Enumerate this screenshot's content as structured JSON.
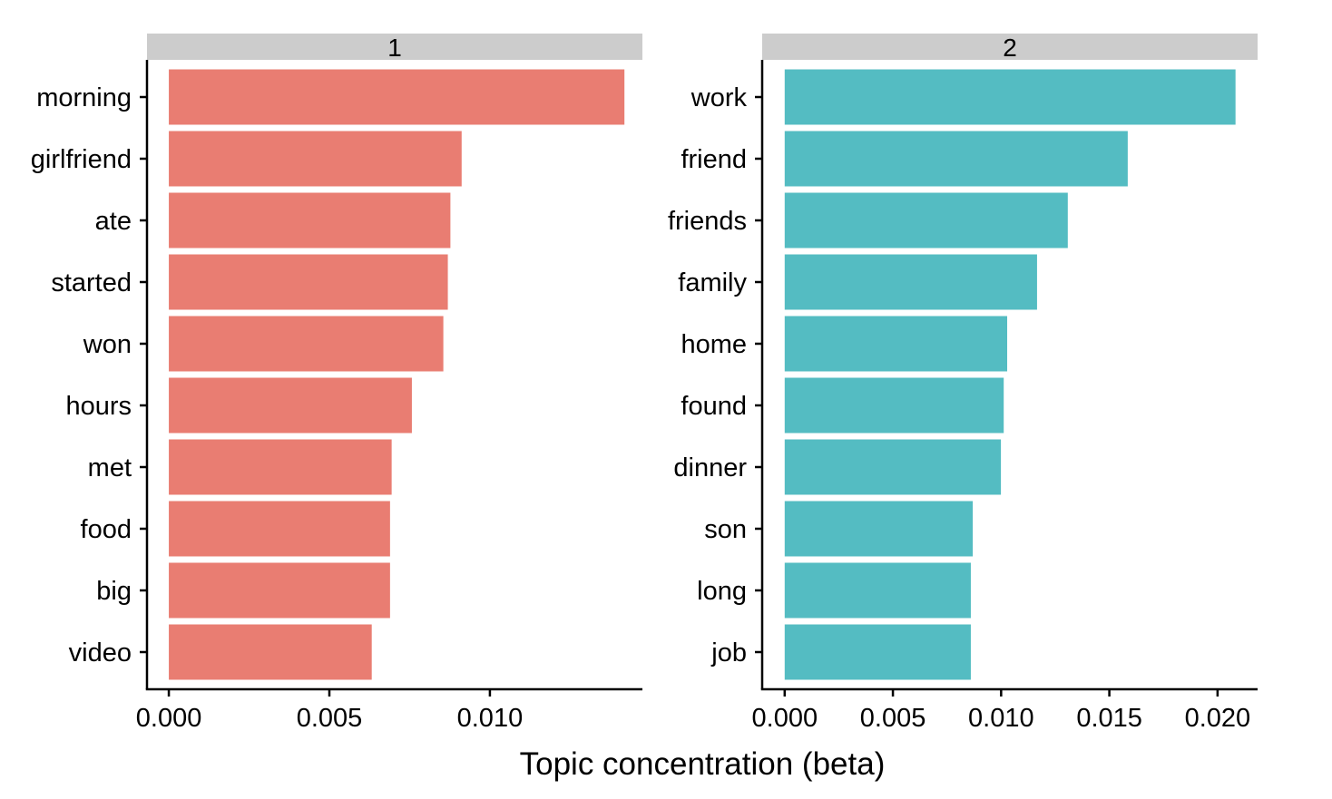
{
  "chart_data": {
    "type": "bar",
    "orientation": "horizontal",
    "xlabel": "Topic concentration (beta)",
    "ylabel": "",
    "panels": [
      {
        "strip": "1",
        "color": "#E97D72",
        "xlim": [
          -0.00068,
          0.01475
        ],
        "ticks": [
          "0.000",
          "0.005",
          "0.010"
        ],
        "tick_values": [
          0,
          0.005,
          0.01
        ],
        "categories": [
          "morning",
          "girlfriend",
          "ate",
          "started",
          "won",
          "hours",
          "met",
          "food",
          "big",
          "video"
        ],
        "values": [
          0.01419,
          0.00912,
          0.00877,
          0.00869,
          0.00855,
          0.00757,
          0.00694,
          0.00689,
          0.00689,
          0.00632
        ]
      },
      {
        "strip": "2",
        "color": "#54BCC2",
        "xlim": [
          -0.00104,
          0.02185
        ],
        "ticks": [
          "0.000",
          "0.005",
          "0.010",
          "0.015",
          "0.020"
        ],
        "tick_values": [
          0,
          0.005,
          0.01,
          0.015,
          0.02
        ],
        "categories": [
          "work",
          "friend",
          "friends",
          "family",
          "home",
          "found",
          "dinner",
          "son",
          "long",
          "job"
        ],
        "values": [
          0.02083,
          0.01585,
          0.01308,
          0.01166,
          0.01028,
          0.01012,
          0.00999,
          0.00869,
          0.0086,
          0.0086
        ]
      }
    ]
  }
}
